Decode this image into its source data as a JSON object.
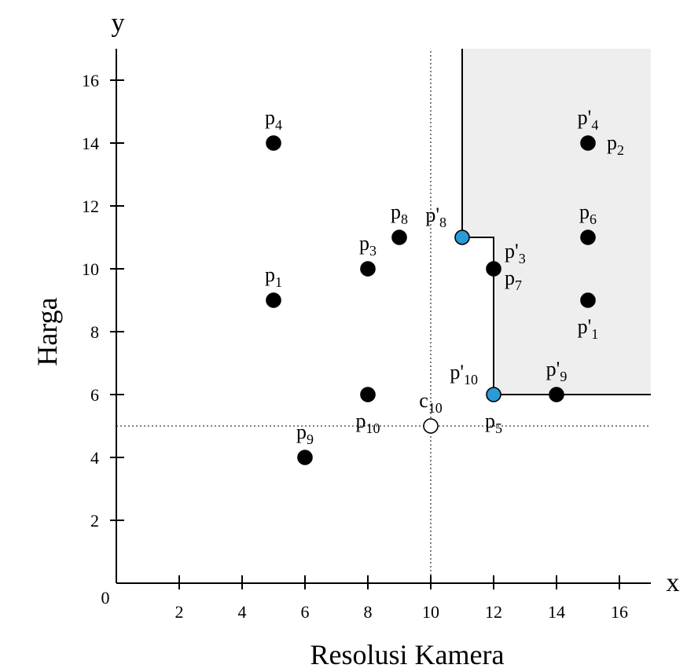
{
  "chart_data": {
    "type": "scatter",
    "title": "",
    "xlabel": "Resolusi Kamera",
    "ylabel": "Harga",
    "x_axis_letter": "x",
    "y_axis_letter": "y",
    "origin_label": "0",
    "xlim": [
      0,
      17
    ],
    "ylim": [
      0,
      17
    ],
    "x_ticks": [
      2,
      4,
      6,
      8,
      10,
      12,
      14,
      16
    ],
    "y_ticks": [
      2,
      4,
      6,
      8,
      10,
      12,
      14,
      16
    ],
    "grid": false,
    "reference_lines": {
      "x": 10,
      "y": 5,
      "style": "dotted"
    },
    "dominance_region": {
      "fill": "#eeeeee",
      "boundary": [
        [
          11,
          17
        ],
        [
          11,
          11
        ],
        [
          12,
          11
        ],
        [
          12,
          6
        ],
        [
          17,
          6
        ]
      ]
    },
    "points": [
      {
        "x": 5,
        "y": 14,
        "style": "black",
        "labels": [
          {
            "base": "p",
            "sub": "4",
            "pos": "above"
          }
        ]
      },
      {
        "x": 5,
        "y": 9,
        "style": "black",
        "labels": [
          {
            "base": "p",
            "sub": "1",
            "pos": "above"
          }
        ]
      },
      {
        "x": 8,
        "y": 10,
        "style": "black",
        "labels": [
          {
            "base": "p",
            "sub": "3",
            "pos": "above"
          }
        ]
      },
      {
        "x": 9,
        "y": 11,
        "style": "black",
        "labels": [
          {
            "base": "p",
            "sub": "8",
            "pos": "above"
          }
        ]
      },
      {
        "x": 8,
        "y": 6,
        "style": "black",
        "labels": [
          {
            "base": "p",
            "sub": "10",
            "pos": "below"
          }
        ]
      },
      {
        "x": 6,
        "y": 4,
        "style": "black",
        "labels": [
          {
            "base": "p",
            "sub": "9",
            "pos": "above"
          }
        ]
      },
      {
        "x": 10,
        "y": 5,
        "style": "hollow",
        "labels": [
          {
            "base": "c",
            "sub": "10",
            "pos": "above"
          }
        ]
      },
      {
        "x": 11,
        "y": 11,
        "style": "blue",
        "labels": [
          {
            "base": "p'",
            "sub": "8",
            "pos": "above-left"
          }
        ]
      },
      {
        "x": 12,
        "y": 10,
        "style": "black",
        "labels": [
          {
            "base": "p'",
            "sub": "3",
            "pos": "above-right"
          },
          {
            "base": "p",
            "sub": "7",
            "pos": "below-right"
          }
        ]
      },
      {
        "x": 12,
        "y": 6,
        "style": "blue",
        "labels": [
          {
            "base": "p'",
            "sub": "10",
            "pos": "above-left"
          },
          {
            "base": "p",
            "sub": "5",
            "pos": "below"
          }
        ]
      },
      {
        "x": 14,
        "y": 6,
        "style": "black",
        "labels": [
          {
            "base": "p'",
            "sub": "9",
            "pos": "above"
          }
        ]
      },
      {
        "x": 15,
        "y": 14,
        "style": "black",
        "labels": [
          {
            "base": "p'",
            "sub": "4",
            "pos": "above"
          },
          {
            "base": "p",
            "sub": "2",
            "pos": "right"
          }
        ]
      },
      {
        "x": 15,
        "y": 11,
        "style": "black",
        "labels": [
          {
            "base": "p",
            "sub": "6",
            "pos": "above"
          }
        ]
      },
      {
        "x": 15,
        "y": 9,
        "style": "black",
        "labels": [
          {
            "base": "p'",
            "sub": "1",
            "pos": "below"
          }
        ]
      }
    ],
    "colors": {
      "black": "#000000",
      "blue": "#2a9ad8",
      "hollow": "#ffffff",
      "region": "#eeeeee"
    }
  }
}
